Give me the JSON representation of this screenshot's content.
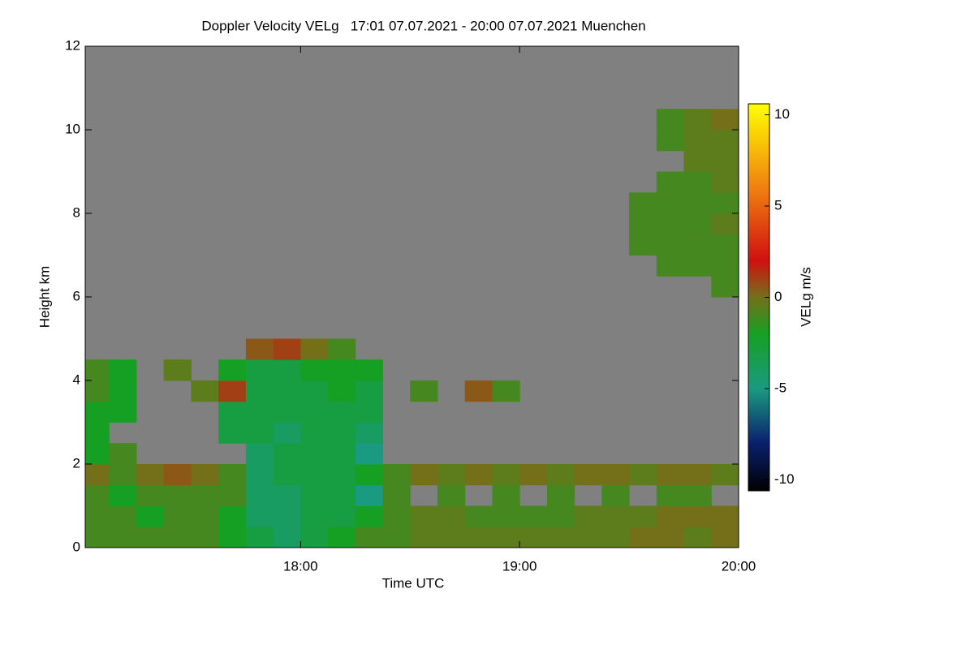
{
  "chart_data": {
    "type": "heatmap",
    "title": "Doppler Velocity VELg   17:01 07.07.2021 - 20:00 07.07.2021 Muenchen",
    "x_label": "Time UTC",
    "y_label": "Height km",
    "colorbar_label": "VELg m/s",
    "xlim": [
      17.0167,
      20.0
    ],
    "xticks": [
      {
        "value": 18,
        "label": "18:00"
      },
      {
        "value": 19,
        "label": "19:00"
      },
      {
        "value": 20,
        "label": "20:00"
      }
    ],
    "ylim": [
      0,
      12
    ],
    "yticks": [
      0,
      2,
      4,
      6,
      8,
      10,
      12
    ],
    "clim": [
      -10.6,
      10.6
    ],
    "cticks": [
      -10,
      -5,
      0,
      5,
      10
    ],
    "colorscale": [
      [
        -10.6,
        "#000000"
      ],
      [
        -8,
        "#0a1f6e"
      ],
      [
        -5,
        "#1a9a80"
      ],
      [
        -2,
        "#16a023"
      ],
      [
        0,
        "#74701a"
      ],
      [
        2,
        "#d01010"
      ],
      [
        6,
        "#f08010"
      ],
      [
        10.6,
        "#ffff00"
      ]
    ],
    "nan_color": "#808080",
    "xbins": [
      17.0,
      17.125,
      17.25,
      17.375,
      17.5,
      17.625,
      17.75,
      17.875,
      18.0,
      18.125,
      18.25,
      18.375,
      18.5,
      18.625,
      18.75,
      18.875,
      19.0,
      19.125,
      19.25,
      19.375,
      19.5,
      19.625,
      19.75,
      19.875,
      20.0
    ],
    "ybins": [
      0,
      0.5,
      1,
      1.5,
      2,
      2.5,
      3,
      3.5,
      4,
      4.5,
      5,
      5.5,
      6,
      6.5,
      7,
      7.5,
      8,
      8.5,
      9,
      9.5,
      10,
      10.5,
      11,
      11.5,
      12
    ],
    "z": [
      [
        -1,
        -1,
        -1,
        -1,
        -1,
        -2,
        -3,
        -4,
        -3,
        -2,
        -1,
        -1,
        -0.5,
        -0.5,
        -0.5,
        -0.5,
        -0.5,
        -0.5,
        -0.5,
        -0.5,
        0,
        0,
        -0.5,
        0
      ],
      [
        -1,
        -1,
        -2,
        -1,
        -1,
        -2,
        -4,
        -4,
        -3,
        -3,
        -2,
        -1,
        -0.5,
        -0.5,
        -1,
        -1,
        -1,
        -1,
        -0.5,
        -0.5,
        -0.5,
        0,
        0,
        0
      ],
      [
        -1,
        -2,
        -1,
        -1,
        -1,
        -1,
        -4,
        -4,
        -3,
        -3,
        -5,
        -1,
        null,
        -1,
        null,
        -1,
        null,
        -1,
        null,
        -1,
        null,
        -1,
        -1,
        null
      ],
      [
        0,
        -1,
        0,
        0.5,
        0,
        -1,
        -4,
        -3,
        -3,
        -3,
        -2,
        -1,
        0,
        -0.5,
        0,
        -0.5,
        0,
        -0.5,
        0,
        0,
        -0.5,
        0,
        0,
        -0.5
      ],
      [
        -2,
        -1,
        null,
        null,
        null,
        null,
        -4,
        -3,
        -3,
        -3,
        -5,
        null,
        null,
        null,
        null,
        null,
        null,
        null,
        null,
        null,
        null,
        null,
        null,
        null
      ],
      [
        -2,
        null,
        null,
        null,
        null,
        -3,
        -3,
        -4,
        -3,
        -3,
        -4,
        null,
        null,
        null,
        null,
        null,
        null,
        null,
        null,
        null,
        null,
        null,
        null,
        null
      ],
      [
        -2,
        -2,
        null,
        null,
        null,
        -3,
        -3,
        -3,
        -3,
        -3,
        -3,
        null,
        null,
        null,
        null,
        null,
        null,
        null,
        null,
        null,
        null,
        null,
        null,
        null
      ],
      [
        -1,
        -2,
        null,
        null,
        -0.5,
        1,
        -3,
        -3,
        -3,
        -2,
        -3,
        null,
        -1,
        null,
        0.5,
        -1,
        null,
        null,
        null,
        null,
        null,
        null,
        null,
        null
      ],
      [
        -1,
        -2,
        null,
        -0.5,
        null,
        -2,
        -3,
        -3,
        -2,
        -2,
        -2,
        null,
        null,
        null,
        null,
        null,
        null,
        null,
        null,
        null,
        null,
        null,
        null,
        null
      ],
      [
        null,
        null,
        null,
        null,
        null,
        null,
        0.5,
        1,
        0,
        -1,
        null,
        null,
        null,
        null,
        null,
        null,
        null,
        null,
        null,
        null,
        null,
        null,
        null,
        null
      ],
      [
        null,
        null,
        null,
        null,
        null,
        null,
        null,
        null,
        null,
        null,
        null,
        null,
        null,
        null,
        null,
        null,
        null,
        null,
        null,
        null,
        null,
        null,
        null,
        null
      ],
      [
        null,
        null,
        null,
        null,
        null,
        null,
        null,
        null,
        null,
        null,
        null,
        null,
        null,
        null,
        null,
        null,
        null,
        null,
        null,
        null,
        null,
        null,
        null,
        null
      ],
      [
        null,
        null,
        null,
        null,
        null,
        null,
        null,
        null,
        null,
        null,
        null,
        null,
        null,
        null,
        null,
        null,
        null,
        null,
        null,
        null,
        null,
        null,
        null,
        -1
      ],
      [
        null,
        null,
        null,
        null,
        null,
        null,
        null,
        null,
        null,
        null,
        null,
        null,
        null,
        null,
        null,
        null,
        null,
        null,
        null,
        null,
        null,
        -1,
        -1,
        -1
      ],
      [
        null,
        null,
        null,
        null,
        null,
        null,
        null,
        null,
        null,
        null,
        null,
        null,
        null,
        null,
        null,
        null,
        null,
        null,
        null,
        null,
        -1,
        -1,
        -1,
        -1
      ],
      [
        null,
        null,
        null,
        null,
        null,
        null,
        null,
        null,
        null,
        null,
        null,
        null,
        null,
        null,
        null,
        null,
        null,
        null,
        null,
        null,
        -1,
        -1,
        -1,
        -0.5
      ],
      [
        null,
        null,
        null,
        null,
        null,
        null,
        null,
        null,
        null,
        null,
        null,
        null,
        null,
        null,
        null,
        null,
        null,
        null,
        null,
        null,
        -1,
        -1,
        -1,
        -1
      ],
      [
        null,
        null,
        null,
        null,
        null,
        null,
        null,
        null,
        null,
        null,
        null,
        null,
        null,
        null,
        null,
        null,
        null,
        null,
        null,
        null,
        null,
        -1,
        -1,
        -0.5
      ],
      [
        null,
        null,
        null,
        null,
        null,
        null,
        null,
        null,
        null,
        null,
        null,
        null,
        null,
        null,
        null,
        null,
        null,
        null,
        null,
        null,
        null,
        null,
        -0.5,
        -0.5
      ],
      [
        null,
        null,
        null,
        null,
        null,
        null,
        null,
        null,
        null,
        null,
        null,
        null,
        null,
        null,
        null,
        null,
        null,
        null,
        null,
        null,
        null,
        -1,
        -0.5,
        -0.5
      ],
      [
        null,
        null,
        null,
        null,
        null,
        null,
        null,
        null,
        null,
        null,
        null,
        null,
        null,
        null,
        null,
        null,
        null,
        null,
        null,
        null,
        null,
        -1,
        -0.5,
        0
      ],
      [
        null,
        null,
        null,
        null,
        null,
        null,
        null,
        null,
        null,
        null,
        null,
        null,
        null,
        null,
        null,
        null,
        null,
        null,
        null,
        null,
        null,
        null,
        null,
        null
      ],
      [
        null,
        null,
        null,
        null,
        null,
        null,
        null,
        null,
        null,
        null,
        null,
        null,
        null,
        null,
        null,
        null,
        null,
        null,
        null,
        null,
        null,
        null,
        null,
        null
      ],
      [
        null,
        null,
        null,
        null,
        null,
        null,
        null,
        null,
        null,
        null,
        null,
        null,
        null,
        null,
        null,
        null,
        null,
        null,
        null,
        null,
        null,
        null,
        null,
        null
      ]
    ]
  }
}
